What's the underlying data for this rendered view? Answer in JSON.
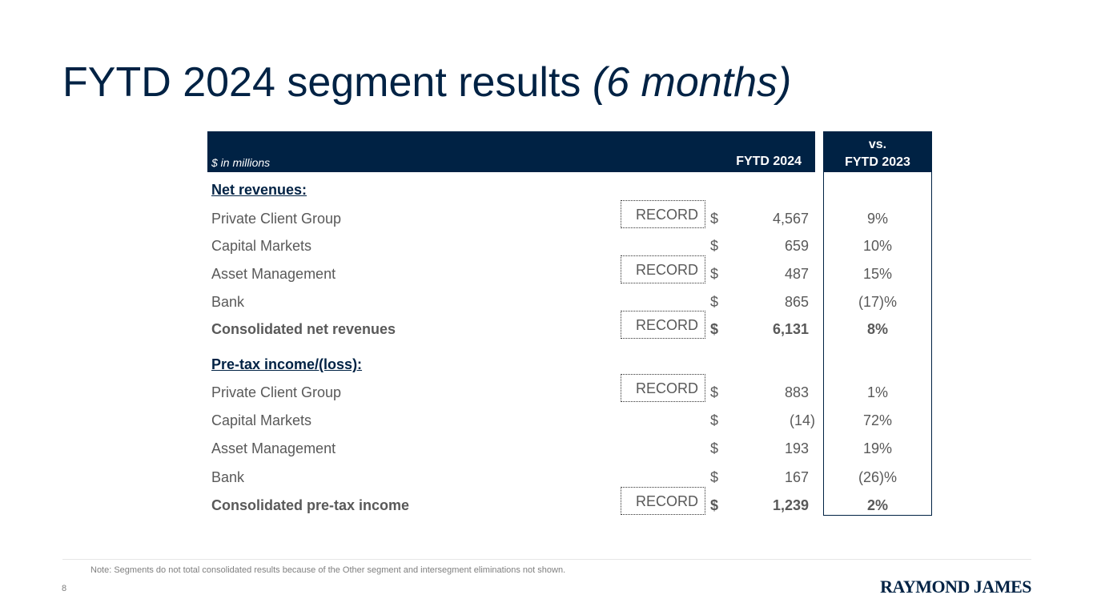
{
  "title": {
    "main": "FYTD 2024 segment results",
    "italic": "(6 months)"
  },
  "table": {
    "units_label": "$ in millions",
    "col_fytd": "FYTD 2024",
    "col_vs_line1": "vs.",
    "col_vs_line2": "FYTD 2023",
    "net_revenues_heading": "Net revenues:",
    "pretax_heading": "Pre-tax income/(loss):",
    "rows": [
      {
        "label": "Private Client Group",
        "record": "RECORD",
        "currency": "$",
        "amount": "4,567",
        "change": "9%"
      },
      {
        "label": "Capital Markets",
        "record": "",
        "currency": "$",
        "amount": "659",
        "change": "10%"
      },
      {
        "label": "Asset Management",
        "record": "RECORD",
        "currency": "$",
        "amount": "487",
        "change": "15%"
      },
      {
        "label": "Bank",
        "record": "",
        "currency": "$",
        "amount": "865",
        "change": "(17)%"
      },
      {
        "label": "Consolidated net revenues",
        "record": "RECORD",
        "currency": "$",
        "amount": "6,131",
        "change": "8%"
      },
      {
        "label": "Private Client Group",
        "record": "RECORD",
        "currency": "$",
        "amount": "883",
        "change": "1%"
      },
      {
        "label": "Capital Markets",
        "record": "",
        "currency": "$",
        "amount": "(14)",
        "change": "72%"
      },
      {
        "label": "Asset Management",
        "record": "",
        "currency": "$",
        "amount": "193",
        "change": "19%"
      },
      {
        "label": "Bank",
        "record": "",
        "currency": "$",
        "amount": "167",
        "change": "(26)%"
      },
      {
        "label": "Consolidated pre-tax income",
        "record": "RECORD",
        "currency": "$",
        "amount": "1,239",
        "change": "2%"
      }
    ]
  },
  "footer": {
    "note": "Note: Segments do not total consolidated results because of the Other segment and intersegment eliminations not shown.",
    "page_number": "8",
    "logo_text": "RAYMOND JAMES"
  },
  "colors": {
    "navy": "#002244",
    "text_gray": "#595959"
  }
}
